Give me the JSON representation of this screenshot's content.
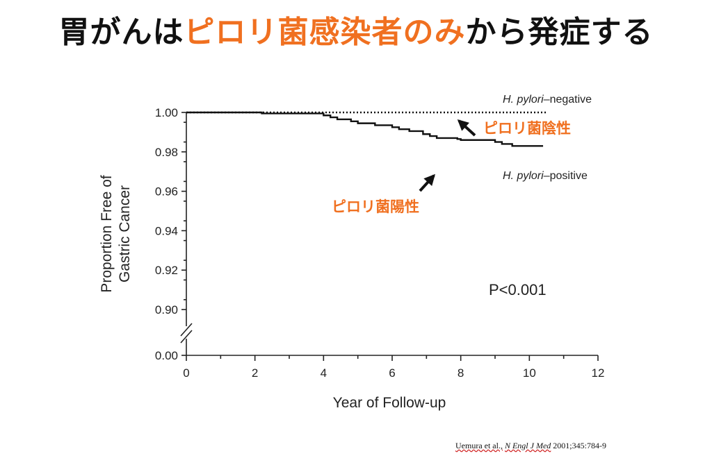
{
  "slide": {
    "title_before": "胃がんは",
    "title_accent": "ピロリ菌感染者のみ",
    "title_after": "から発症する",
    "accent_color": "#f07020",
    "citation_authors": "Uemura et al.,",
    "citation_journal": "N Engl J Med",
    "citation_rest": "2001;345:784-9"
  },
  "chart_data": {
    "type": "line",
    "xlabel": "Year of Follow-up",
    "ylabel": [
      "Proportion Free of",
      "Gastric Cancer"
    ],
    "xlim": [
      0,
      12
    ],
    "ylim": [
      0.9,
      1.0
    ],
    "y_broken_axis_bottom": 0.0,
    "x_ticks": [
      "0",
      "2",
      "4",
      "6",
      "8",
      "10",
      "12"
    ],
    "y_ticks": [
      "1.00",
      "0.98",
      "0.96",
      "0.94",
      "0.92",
      "0.90"
    ],
    "y_bottom_tick": "0.00",
    "series": [
      {
        "name": "H. pylori–negative",
        "name_italic": "H. pylori",
        "name_rest": "–negative",
        "style": "dotted",
        "x": [
          0,
          10.5
        ],
        "y": [
          1.0,
          1.0
        ]
      },
      {
        "name": "H. pylori–positive",
        "name_italic": "H. pylori",
        "name_rest": "–positive",
        "style": "step",
        "x": [
          0,
          2.2,
          4.0,
          4.2,
          4.4,
          4.8,
          5.0,
          5.5,
          6.0,
          6.2,
          6.5,
          6.9,
          7.1,
          7.3,
          7.9,
          8.0,
          9.0,
          9.2,
          9.5,
          10.4
        ],
        "y": [
          1.0,
          0.9995,
          0.9985,
          0.9975,
          0.9965,
          0.9955,
          0.9945,
          0.9935,
          0.9925,
          0.9915,
          0.9905,
          0.989,
          0.988,
          0.987,
          0.9865,
          0.986,
          0.985,
          0.984,
          0.983,
          0.983
        ]
      }
    ],
    "annotations": {
      "negative_jp": "ピロリ菌陰性",
      "positive_jp": "ピロリ菌陽性",
      "p_value": "P<0.001"
    }
  }
}
